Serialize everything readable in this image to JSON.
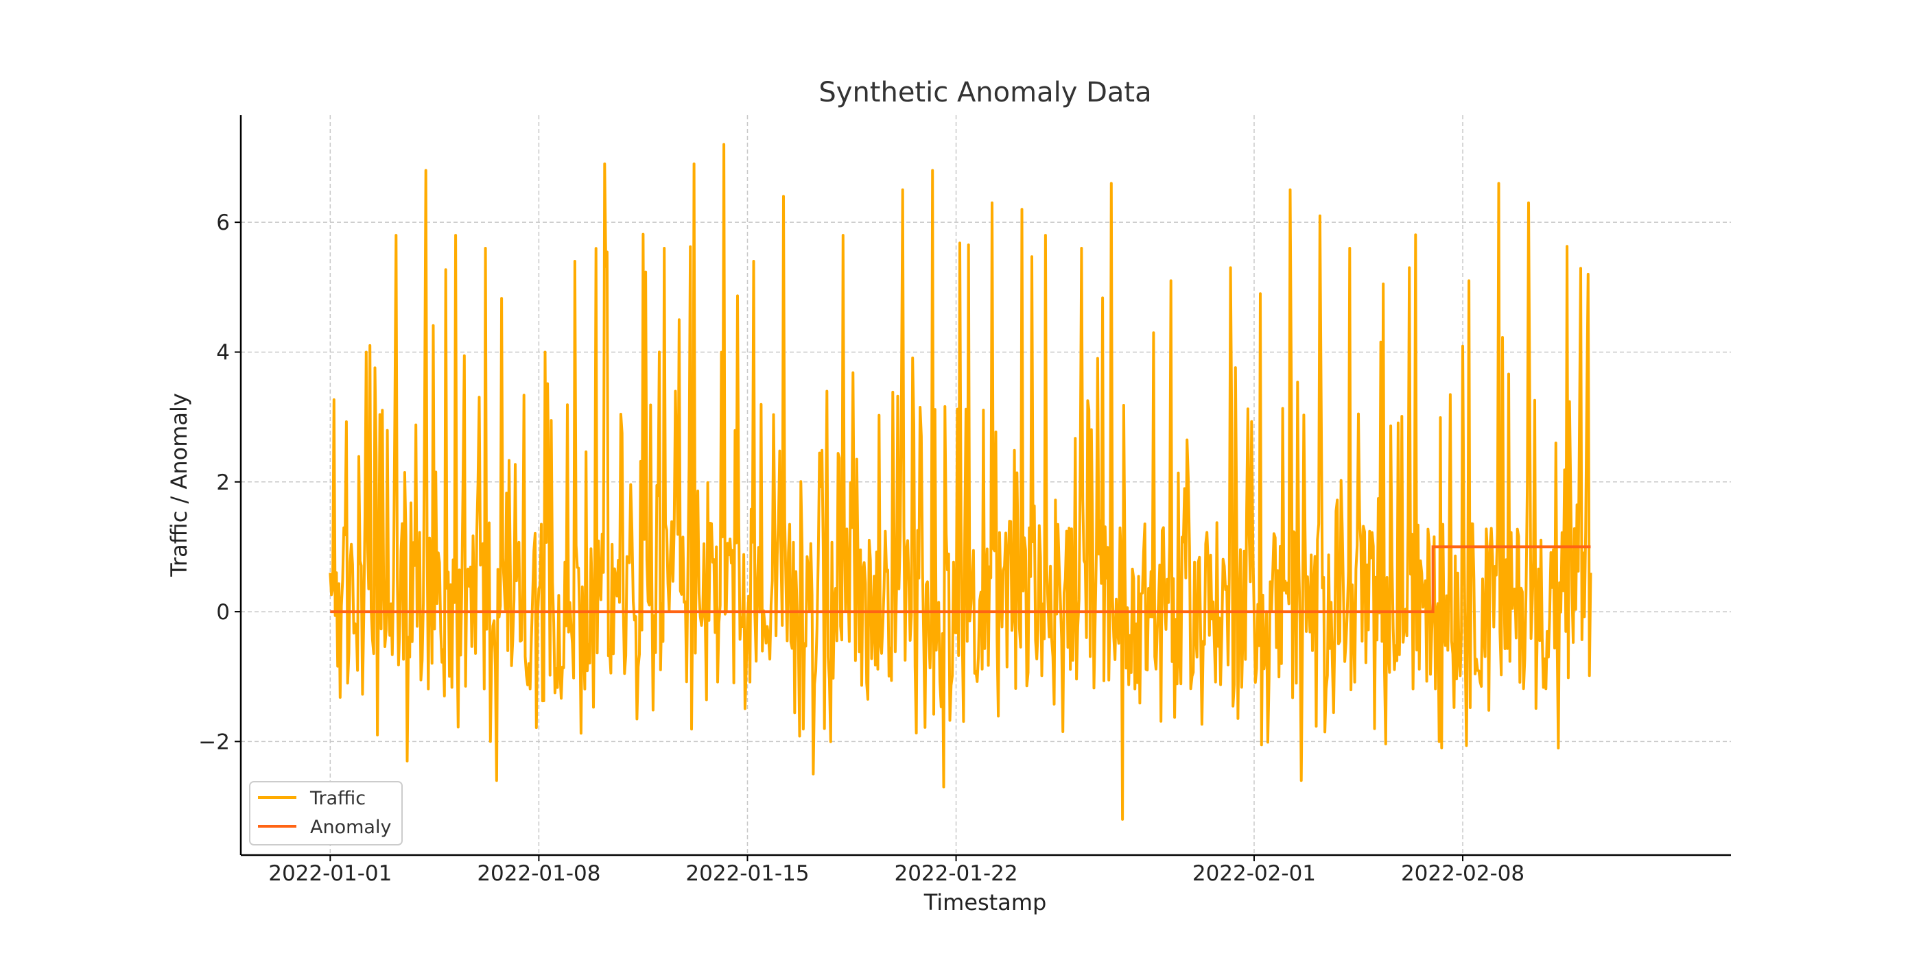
{
  "chart_data": {
    "type": "line",
    "title": "Synthetic Anomaly Data",
    "xlabel": "Timestamp",
    "ylabel": "Traffic / Anomaly",
    "x_range": [
      "2021-12-29",
      "2022-02-17"
    ],
    "x_start": "2022-01-01",
    "x_step": "1 hour",
    "ylim": [
      -3.75,
      7.65
    ],
    "grid": true,
    "legend_placement": "bottom-left",
    "xticks": [
      "2022-01-01",
      "2022-01-08",
      "2022-01-15",
      "2022-01-22",
      "2022-02-01",
      "2022-02-08"
    ],
    "yticks": [
      -2,
      0,
      2,
      4,
      6
    ],
    "ytick_labels": [
      "−2",
      "0",
      "2",
      "4",
      "6"
    ],
    "series": [
      {
        "name": "Traffic",
        "color": "#ffab00",
        "summary": "hourly noisy signal, mostly between -1.5 and 2 with frequent spikes up to about 7",
        "points_approx": [
          [
            "2022-01-01",
            0.6
          ],
          [
            "2022-01-01",
            -1.1
          ],
          [
            "2022-01-02",
            4.0
          ],
          [
            "2022-01-02",
            -1.9
          ],
          [
            "2022-01-03",
            5.8
          ],
          [
            "2022-01-03",
            -2.3
          ],
          [
            "2022-01-04",
            6.8
          ],
          [
            "2022-01-05",
            5.8
          ],
          [
            "2022-01-06",
            5.6
          ],
          [
            "2022-01-06",
            -2.6
          ],
          [
            "2022-01-08",
            4.0
          ],
          [
            "2022-01-09",
            5.4
          ],
          [
            "2022-01-10",
            6.9
          ],
          [
            "2022-01-12",
            5.6
          ],
          [
            "2022-01-13",
            6.9
          ],
          [
            "2022-01-14",
            7.2
          ],
          [
            "2022-01-15",
            5.4
          ],
          [
            "2022-01-16",
            6.4
          ],
          [
            "2022-01-17",
            -2.5
          ],
          [
            "2022-01-18",
            5.8
          ],
          [
            "2022-01-20",
            6.5
          ],
          [
            "2022-01-21",
            6.8
          ],
          [
            "2022-01-21",
            -2.7
          ],
          [
            "2022-01-23",
            6.3
          ],
          [
            "2022-01-24",
            6.2
          ],
          [
            "2022-01-26",
            5.6
          ],
          [
            "2022-01-27",
            6.6
          ],
          [
            "2022-01-27",
            -3.2
          ],
          [
            "2022-01-29",
            5.1
          ],
          [
            "2022-01-31",
            5.3
          ],
          [
            "2022-02-01",
            4.9
          ],
          [
            "2022-02-02",
            6.5
          ],
          [
            "2022-02-02",
            -2.6
          ],
          [
            "2022-02-03",
            6.1
          ],
          [
            "2022-02-04",
            5.6
          ],
          [
            "2022-02-06",
            5.3
          ],
          [
            "2022-02-07",
            -2.0
          ],
          [
            "2022-02-08",
            5.1
          ],
          [
            "2022-02-09",
            6.6
          ],
          [
            "2022-02-10",
            6.3
          ],
          [
            "2022-02-11",
            -2.1
          ],
          [
            "2022-02-12",
            5.2
          ],
          [
            "2022-02-12",
            0.6
          ]
        ]
      },
      {
        "name": "Anomaly",
        "color": "#ff6414",
        "values_description": "0 until 2022-02-07, then 1",
        "steps": [
          [
            "2022-01-01",
            0
          ],
          [
            "2022-02-07",
            1
          ],
          [
            "2022-02-12",
            1
          ]
        ]
      }
    ]
  }
}
